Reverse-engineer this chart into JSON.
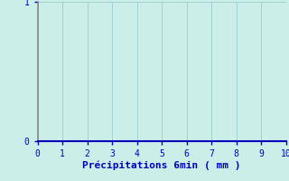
{
  "xlabel": "Précipitations 6min ( mm )",
  "xlim": [
    0,
    10
  ],
  "ylim": [
    0,
    1
  ],
  "xticks": [
    0,
    1,
    2,
    3,
    4,
    5,
    6,
    7,
    8,
    9,
    10
  ],
  "yticks": [
    0,
    1
  ],
  "background_color": "#cceee8",
  "plot_bg_color": "#cceee8",
  "grid_color": "#99cccc",
  "bottom_spine_color": "#0000bb",
  "left_spine_color": "#888888",
  "tick_color": "#0000bb",
  "label_color": "#0000bb",
  "xlabel_fontsize": 8,
  "tick_fontsize": 7
}
